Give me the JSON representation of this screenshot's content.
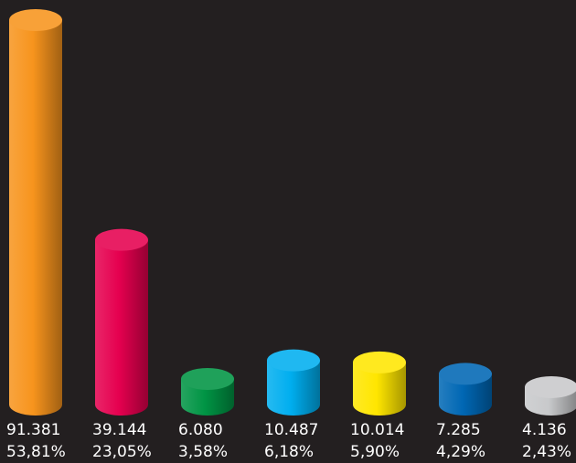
{
  "chart_data": {
    "type": "bar",
    "style": "3d-cylinder",
    "ylim": [
      0,
      91381
    ],
    "grid": false,
    "background": "#231f20",
    "values": [
      91381,
      39144,
      6080,
      10487,
      10014,
      7285,
      4136
    ],
    "bars": [
      {
        "value": 91381,
        "value_label": "91.381",
        "percent": 53.81,
        "percent_label": "53,81%",
        "color": "#f7941d"
      },
      {
        "value": 39144,
        "value_label": "39.144",
        "percent": 23.05,
        "percent_label": "23,05%",
        "color": "#e5004f"
      },
      {
        "value": 6080,
        "value_label": "6.080",
        "percent": 3.58,
        "percent_label": "3,58%",
        "color": "#009444"
      },
      {
        "value": 10487,
        "value_label": "10.487",
        "percent": 6.18,
        "percent_label": "6,18%",
        "color": "#00aeef"
      },
      {
        "value": 10014,
        "value_label": "10.014",
        "percent": 5.9,
        "percent_label": "5,90%",
        "color": "#ffe600"
      },
      {
        "value": 7285,
        "value_label": "7.285",
        "percent": 4.29,
        "percent_label": "4,29%",
        "color": "#0067b4"
      },
      {
        "value": 4136,
        "value_label": "4.136",
        "percent": 2.43,
        "percent_label": "2,43%",
        "color": "#c8c9cb"
      }
    ]
  }
}
